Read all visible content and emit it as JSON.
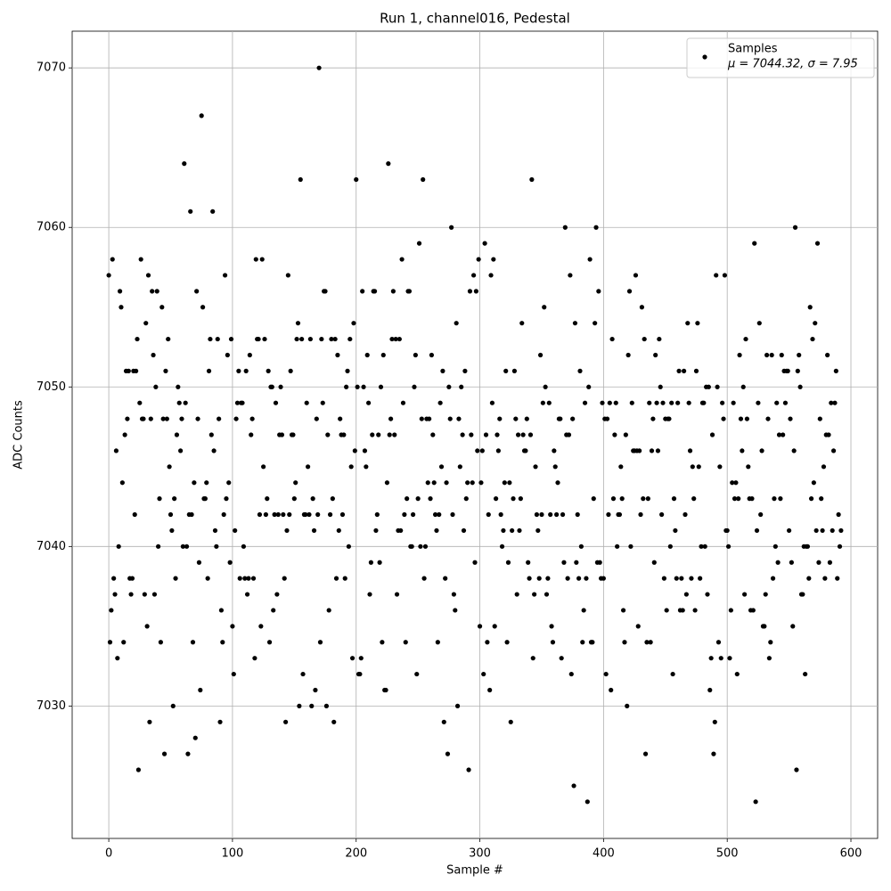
{
  "chart_data": {
    "type": "scatter",
    "title": "Run 1, channel016, Pedestal",
    "xlabel": "Sample #",
    "ylabel": "ADC Counts",
    "xlim": [
      -29.6,
      621.6
    ],
    "ylim": [
      7021.7,
      7072.3
    ],
    "xticks": [
      0,
      100,
      200,
      300,
      400,
      500,
      600
    ],
    "yticks": [
      7030,
      7040,
      7050,
      7060,
      7070
    ],
    "grid": true,
    "legend": "upper right",
    "annotation": "μ = 7044.32, σ = 7.95",
    "series": [
      {
        "name": "Samples",
        "color": "#000000",
        "x": [
          0,
          1,
          2,
          3,
          4,
          5,
          6,
          7,
          8,
          9,
          10,
          11,
          12,
          13,
          14,
          15,
          16,
          17,
          18,
          19,
          20,
          21,
          22,
          23,
          24,
          25,
          26,
          27,
          28,
          29,
          30,
          31,
          32,
          33,
          34,
          35,
          36,
          37,
          38,
          39,
          40,
          41,
          42,
          43,
          44,
          45,
          46,
          47,
          48,
          49,
          50,
          51,
          52,
          53,
          54,
          55,
          56,
          57,
          58,
          59,
          60,
          61,
          62,
          63,
          64,
          65,
          66,
          67,
          68,
          69,
          70,
          71,
          72,
          73,
          74,
          75,
          76,
          77,
          78,
          79,
          80,
          81,
          82,
          83,
          84,
          85,
          86,
          87,
          88,
          89,
          90,
          91,
          92,
          93,
          94,
          95,
          96,
          97,
          98,
          99,
          100,
          101,
          102,
          103,
          104,
          105,
          106,
          107,
          108,
          109,
          110,
          111,
          112,
          113,
          114,
          115,
          116,
          117,
          118,
          119,
          120,
          121,
          122,
          123,
          124,
          125,
          126,
          127,
          128,
          129,
          130,
          131,
          132,
          133,
          134,
          135,
          136,
          137,
          138,
          139,
          140,
          141,
          142,
          143,
          144,
          145,
          146,
          147,
          148,
          149,
          150,
          151,
          152,
          153,
          154,
          155,
          156,
          157,
          158,
          159,
          160,
          161,
          162,
          163,
          164,
          165,
          166,
          167,
          168,
          169,
          170,
          171,
          172,
          173,
          174,
          175,
          176,
          177,
          178,
          179,
          180,
          181,
          182,
          183,
          184,
          185,
          186,
          187,
          188,
          189,
          190,
          191,
          192,
          193,
          194,
          195,
          196,
          197,
          198,
          199,
          200,
          201,
          202,
          203,
          204,
          205,
          206,
          207,
          208,
          209,
          210,
          211,
          212,
          213,
          214,
          215,
          216,
          217,
          218,
          219,
          220,
          221,
          222,
          223,
          224,
          225,
          226,
          227,
          228,
          229,
          230,
          231,
          232,
          233,
          234,
          235,
          236,
          237,
          238,
          239,
          240,
          241,
          242,
          243,
          244,
          245,
          246,
          247,
          248,
          249,
          250,
          251,
          252,
          253,
          254,
          255,
          256,
          257,
          258,
          259,
          260,
          261,
          262,
          263,
          264,
          265,
          266,
          267,
          268,
          269,
          270,
          271,
          272,
          273,
          274,
          275,
          276,
          277,
          278,
          279,
          280,
          281,
          282,
          283,
          284,
          285,
          286,
          287,
          288,
          289,
          290,
          291,
          292,
          293,
          294,
          295,
          296,
          297,
          298,
          299,
          300,
          301,
          302,
          303,
          304,
          305,
          306,
          307,
          308,
          309,
          310,
          311,
          312,
          313,
          314,
          315,
          316,
          317,
          318,
          319,
          320,
          321,
          322,
          323,
          324,
          325,
          326,
          327,
          328,
          329,
          330,
          331,
          332,
          333,
          334,
          335,
          336,
          337,
          338,
          339,
          340,
          341,
          342,
          343,
          344,
          345,
          346,
          347,
          348,
          349,
          350,
          351,
          352,
          353,
          354,
          355,
          356,
          357,
          358,
          359,
          360,
          361,
          362,
          363,
          364,
          365,
          366,
          367,
          368,
          369,
          370,
          371,
          372,
          373,
          374,
          375,
          376,
          377,
          378,
          379,
          380,
          381,
          382,
          383,
          384,
          385,
          386,
          387,
          388,
          389,
          390,
          391,
          392,
          393,
          394,
          395,
          396,
          397,
          398,
          399,
          400,
          401,
          402,
          403,
          404,
          405,
          406,
          407,
          408,
          409,
          410,
          411,
          412,
          413,
          414,
          415,
          416,
          417,
          418,
          419,
          420,
          421,
          422,
          423,
          424,
          425,
          426,
          427,
          428,
          429,
          430,
          431,
          432,
          433,
          434,
          435,
          436,
          437,
          438,
          439,
          440,
          441,
          442,
          443,
          444,
          445,
          446,
          447,
          448,
          449,
          450,
          451,
          452,
          453,
          454,
          455,
          456,
          457,
          458,
          459,
          460,
          461,
          462,
          463,
          464,
          465,
          466,
          467,
          468,
          469,
          470,
          471,
          472,
          473,
          474,
          475,
          476,
          477,
          478,
          479,
          480,
          481,
          482,
          483,
          484,
          485,
          486,
          487,
          488,
          489,
          490,
          491,
          492,
          493,
          494,
          495,
          496,
          497,
          498,
          499,
          500,
          501,
          502,
          503,
          504,
          505,
          506,
          507,
          508,
          509,
          510,
          511,
          512,
          513,
          514,
          515,
          516,
          517,
          518,
          519,
          520,
          521,
          522,
          523,
          524,
          525,
          526,
          527,
          528,
          529,
          530,
          531,
          532,
          533,
          534,
          535,
          536,
          537,
          538,
          539,
          540,
          541,
          542,
          543,
          544,
          545,
          546,
          547,
          548,
          549,
          550,
          551,
          552,
          553,
          554,
          555,
          556,
          557,
          558,
          559,
          560,
          561,
          562,
          563,
          564,
          565,
          566,
          567,
          568,
          569,
          570,
          571,
          572,
          573,
          574,
          575,
          576,
          577,
          578,
          579,
          580,
          581,
          582,
          583,
          584,
          585,
          586,
          587,
          588,
          589,
          590,
          591,
          592
        ],
        "values": [
          7057,
          7034,
          7036,
          7058,
          7038,
          7037,
          7046,
          7033,
          7040,
          7056,
          7055,
          7044,
          7034,
          7047,
          7051,
          7048,
          7051,
          7038,
          7037,
          7038,
          7051,
          7042,
          7051,
          7053,
          7026,
          7049,
          7058,
          7048,
          7048,
          7037,
          7054,
          7035,
          7057,
          7029,
          7048,
          7056,
          7052,
          7037,
          7050,
          7056,
          7040,
          7043,
          7034,
          7055,
          7048,
          7027,
          7051,
          7048,
          7053,
          7045,
          7042,
          7041,
          7030,
          7043,
          7038,
          7047,
          7050,
          7049,
          7046,
          7048,
          7040,
          7064,
          7049,
          7040,
          7027,
          7042,
          7061,
          7042,
          7034,
          7044,
          7028,
          7056,
          7048,
          7039,
          7031,
          7067,
          7055,
          7043,
          7043,
          7044,
          7038,
          7051,
          7053,
          7047,
          7061,
          7046,
          7041,
          7040,
          7053,
          7048,
          7029,
          7036,
          7034,
          7042,
          7057,
          7043,
          7052,
          7044,
          7039,
          7053,
          7035,
          7032,
          7041,
          7048,
          7049,
          7051,
          7038,
          7049,
          7049,
          7040,
          7038,
          7051,
          7037,
          7038,
          7052,
          7047,
          7048,
          7038,
          7033,
          7058,
          7053,
          7053,
          7042,
          7035,
          7058,
          7045,
          7053,
          7042,
          7043,
          7051,
          7034,
          7050,
          7050,
          7036,
          7042,
          7049,
          7037,
          7042,
          7047,
          7050,
          7047,
          7042,
          7038,
          7029,
          7041,
          7057,
          7042,
          7051,
          7047,
          7047,
          7043,
          7044,
          7053,
          7054,
          7030,
          7063,
          7053,
          7032,
          7042,
          7042,
          7049,
          7045,
          7042,
          7053,
          7030,
          7043,
          7041,
          7031,
          7048,
          7042,
          7070,
          7034,
          7053,
          7049,
          7056,
          7056,
          7030,
          7047,
          7036,
          7042,
          7053,
          7043,
          7029,
          7053,
          7038,
          7052,
          7041,
          7048,
          7047,
          7042,
          7047,
          7038,
          7050,
          7051,
          7040,
          7053,
          7045,
          7033,
          7054,
          7046,
          7063,
          7050,
          7032,
          7032,
          7033,
          7056,
          7050,
          7046,
          7045,
          7052,
          7049,
          7037,
          7039,
          7047,
          7056,
          7056,
          7041,
          7042,
          7047,
          7039,
          7050,
          7034,
          7052,
          7031,
          7031,
          7044,
          7064,
          7047,
          7048,
          7053,
          7056,
          7047,
          7053,
          7037,
          7041,
          7053,
          7041,
          7058,
          7049,
          7042,
          7034,
          7043,
          7056,
          7056,
          7040,
          7040,
          7042,
          7050,
          7052,
          7032,
          7043,
          7059,
          7040,
          7048,
          7063,
          7038,
          7040,
          7048,
          7044,
          7048,
          7043,
          7052,
          7047,
          7044,
          7042,
          7041,
          7034,
          7042,
          7049,
          7045,
          7051,
          7029,
          7038,
          7044,
          7027,
          7050,
          7048,
          7060,
          7042,
          7037,
          7036,
          7054,
          7030,
          7048,
          7045,
          7050,
          7047,
          7041,
          7051,
          7043,
          7044,
          7026,
          7056,
          7047,
          7044,
          7057,
          7039,
          7056,
          7046,
          7058,
          7035,
          7044,
          7046,
          7032,
          7059,
          7047,
          7034,
          7042,
          7031,
          7057,
          7049,
          7058,
          7035,
          7043,
          7047,
          7046,
          7048,
          7042,
          7040,
          7041,
          7044,
          7051,
          7034,
          7039,
          7044,
          7029,
          7041,
          7043,
          7051,
          7048,
          7037,
          7047,
          7041,
          7043,
          7054,
          7047,
          7046,
          7046,
          7048,
          7039,
          7038,
          7047,
          7063,
          7033,
          7037,
          7045,
          7042,
          7041,
          7038,
          7052,
          7042,
          7049,
          7055,
          7050,
          7037,
          7038,
          7049,
          7042,
          7035,
          7034,
          7046,
          7045,
          7042,
          7044,
          7048,
          7048,
          7033,
          7042,
          7039,
          7060,
          7047,
          7038,
          7047,
          7057,
          7032,
          7048,
          7025,
          7054,
          7039,
          7042,
          7038,
          7051,
          7040,
          7034,
          7036,
          7049,
          7038,
          7024,
          7050,
          7058,
          7034,
          7034,
          7043,
          7054,
          7060,
          7039,
          7056,
          7039,
          7038,
          7049,
          7038,
          7048,
          7032,
          7048,
          7042,
          7049,
          7031,
          7053,
          7043,
          7047,
          7049,
          7040,
          7042,
          7042,
          7045,
          7043,
          7036,
          7034,
          7047,
          7030,
          7052,
          7056,
          7040,
          7049,
          7046,
          7046,
          7057,
          7046,
          7035,
          7046,
          7042,
          7055,
          7043,
          7053,
          7027,
          7034,
          7043,
          7049,
          7034,
          7046,
          7048,
          7039,
          7052,
          7049,
          7046,
          7053,
          7050,
          7042,
          7049,
          7038,
          7048,
          7036,
          7048,
          7048,
          7040,
          7049,
          7032,
          7043,
          7041,
          7038,
          7049,
          7051,
          7036,
          7038,
          7036,
          7051,
          7042,
          7037,
          7054,
          7049,
          7046,
          7038,
          7045,
          7043,
          7036,
          7051,
          7054,
          7045,
          7038,
          7040,
          7049,
          7049,
          7040,
          7050,
          7037,
          7050,
          7031,
          7033,
          7047,
          7027,
          7029,
          7057,
          7050,
          7034,
          7045,
          7033,
          7049,
          7048,
          7057,
          7041,
          7041,
          7040,
          7033,
          7036,
          7044,
          7049,
          7043,
          7044,
          7032,
          7043,
          7052,
          7048,
          7046,
          7050,
          7037,
          7053,
          7048,
          7045,
          7043,
          7036,
          7043,
          7036,
          7059,
          7024,
          7041,
          7049,
          7054,
          7042,
          7046,
          7035,
          7035,
          7037,
          7052,
          7048,
          7033,
          7034,
          7052,
          7038,
          7043,
          7040,
          7049,
          7039,
          7047,
          7043,
          7052,
          7047,
          7051,
          7049,
          7051,
          7051,
          7041,
          7048,
          7039,
          7035,
          7046,
          7060,
          7026,
          7051,
          7052,
          7050,
          7037,
          7037,
          7040,
          7032,
          7040,
          7040,
          7038,
          7055,
          7043,
          7053,
          7044,
          7054,
          7041,
          7059,
          7039,
          7048,
          7043,
          7041,
          7045,
          7038,
          7047,
          7052,
          7047,
          7039,
          7049,
          7041,
          7046,
          7049,
          7051,
          7038,
          7042,
          7040,
          7041
        ]
      }
    ]
  }
}
